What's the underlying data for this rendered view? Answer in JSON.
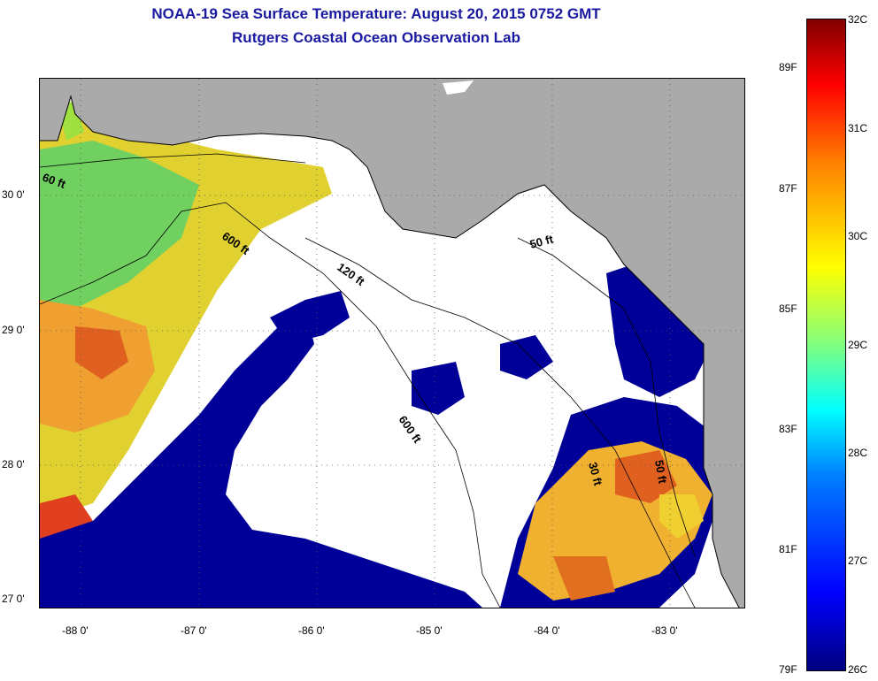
{
  "title": "NOAA-19 Sea Surface Temperature:  August 20, 2015 0752 GMT",
  "subtitle": "Rutgers Coastal Ocean Observation Lab",
  "axes": {
    "lat_labels": [
      "30 0'",
      "29 0'",
      "28 0'",
      "27 0'"
    ],
    "lon_labels": [
      "-88 0'",
      "-87 0'",
      "-86 0'",
      "-85 0'",
      "-84 0'",
      "-83 0'"
    ]
  },
  "contours": {
    "labels": [
      "60 ft",
      "600 ft",
      "120 ft",
      "600 ft",
      "50 ft",
      "30 ft",
      "50 ft"
    ]
  },
  "colorbar": {
    "celsius": [
      "32C",
      "31C",
      "30C",
      "29C",
      "28C",
      "27C",
      "26C"
    ],
    "fahrenheit": [
      "89F",
      "87F",
      "85F",
      "83F",
      "81F",
      "79F"
    ]
  },
  "colors": {
    "land": "#aaaaaa",
    "cloud": "#ffffff",
    "cold_water": "#000099",
    "title": "#1a1aa0"
  }
}
